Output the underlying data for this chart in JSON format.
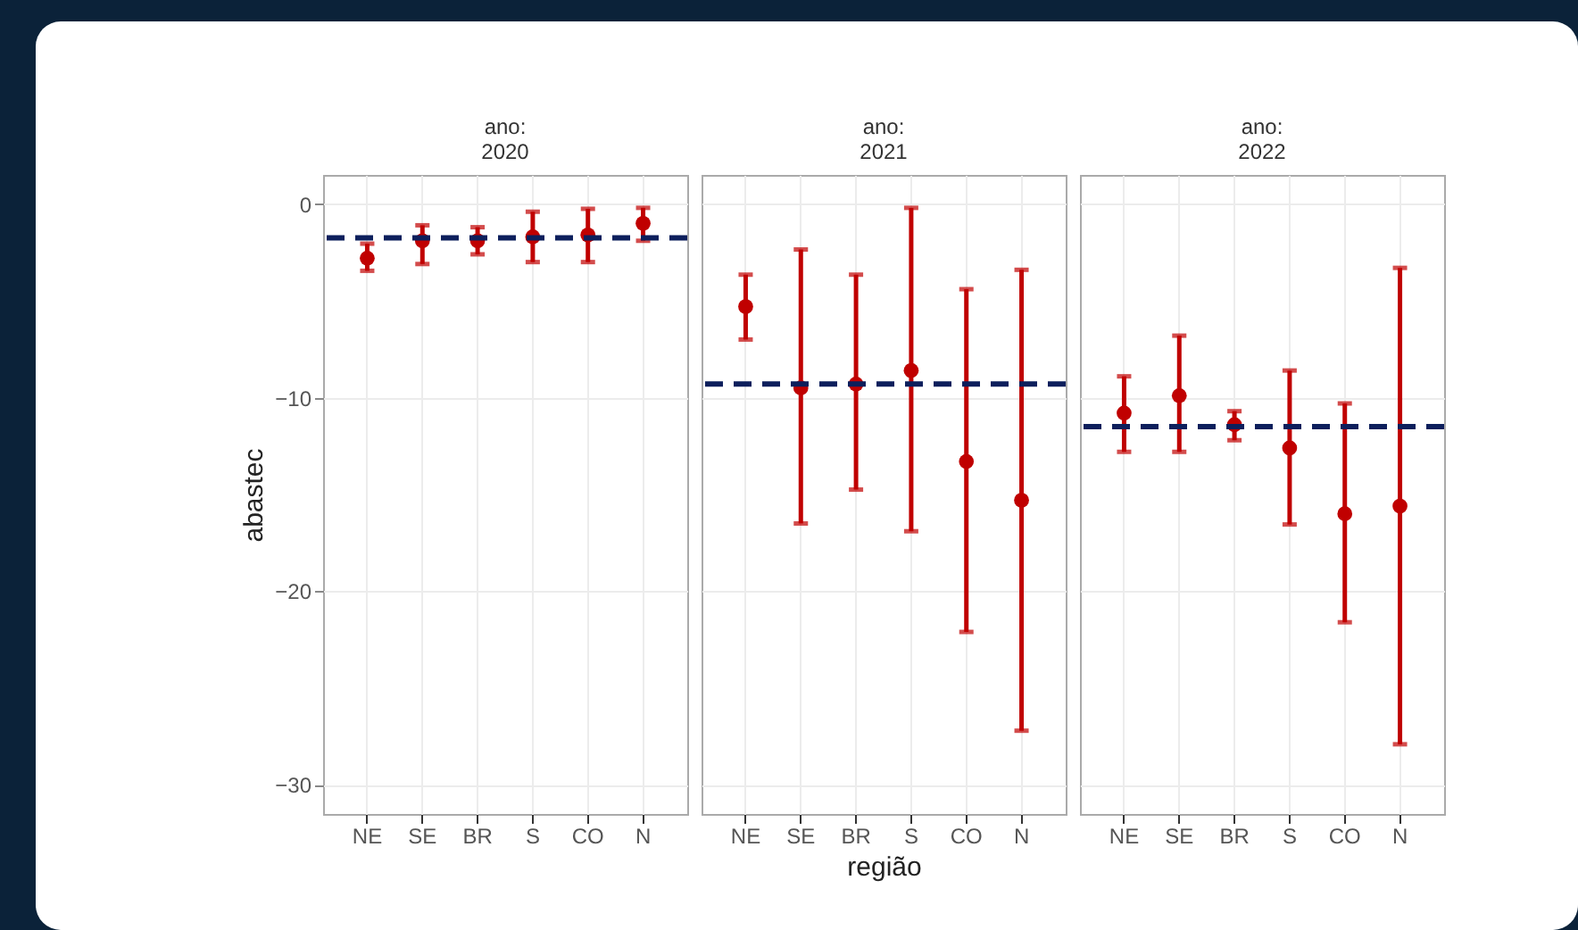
{
  "chart_data": [
    {
      "type": "scatter",
      "title": "ano:\n2020",
      "ylabel": "abastec",
      "categories": [
        "NE",
        "SE",
        "BR",
        "S",
        "CO",
        "N"
      ],
      "series": [
        {
          "color": "#c00000",
          "values": [
            -2.8,
            -1.9,
            -1.9,
            -1.7,
            -1.6,
            -1.0
          ],
          "errors": [
            [
              -3.45,
              -2.05
            ],
            [
              -3.1,
              -1.1
            ],
            [
              -2.6,
              -1.2
            ],
            [
              -3.0,
              -0.4
            ],
            [
              -3.0,
              -0.25
            ],
            [
              -1.9,
              -0.2
            ]
          ]
        }
      ],
      "ylim": [
        -31.5,
        1.5
      ],
      "yticks": [
        0,
        -10,
        -20,
        -30
      ],
      "grid": true,
      "marker": "circle",
      "ref_lines": [
        {
          "axis": "y",
          "value": -1.75,
          "color": "#0d1f5c",
          "line_style": "dashed"
        }
      ]
    },
    {
      "type": "scatter",
      "title": "ano:\n2021",
      "xlabel": "região",
      "categories": [
        "NE",
        "SE",
        "BR",
        "S",
        "CO",
        "N"
      ],
      "series": [
        {
          "color": "#c00000",
          "values": [
            -5.3,
            -9.5,
            -9.3,
            -8.6,
            -13.3,
            -15.3
          ],
          "errors": [
            [
              -7.0,
              -3.65
            ],
            [
              -16.5,
              -2.35
            ],
            [
              -14.75,
              -3.65
            ],
            [
              -16.9,
              -0.2
            ],
            [
              -22.1,
              -4.4
            ],
            [
              -27.2,
              -3.4
            ]
          ]
        }
      ],
      "ylim": [
        -31.5,
        1.5
      ],
      "yticks": [
        0,
        -10,
        -20,
        -30
      ],
      "grid": true,
      "marker": "circle",
      "tick_labels": "x",
      "ref_lines": [
        {
          "axis": "y",
          "value": -9.3,
          "color": "#0d1f5c",
          "line_style": "dashed"
        }
      ]
    },
    {
      "type": "scatter",
      "title": "ano:\n2022",
      "categories": [
        "NE",
        "SE",
        "BR",
        "S",
        "CO",
        "N"
      ],
      "series": [
        {
          "color": "#c00000",
          "values": [
            -10.8,
            -9.9,
            -11.4,
            -12.6,
            -16.0,
            -15.6
          ],
          "errors": [
            [
              -12.8,
              -8.9
            ],
            [
              -12.8,
              -6.8
            ],
            [
              -12.2,
              -10.7
            ],
            [
              -16.55,
              -8.6
            ],
            [
              -21.6,
              -10.3
            ],
            [
              -27.9,
              -3.3
            ]
          ]
        }
      ],
      "ylim": [
        -31.5,
        1.5
      ],
      "yticks": [
        0,
        -10,
        -20,
        -30
      ],
      "grid": true,
      "marker": "circle",
      "tick_labels": "x",
      "ref_lines": [
        {
          "axis": "y",
          "value": -11.5,
          "color": "#0d1f5c",
          "line_style": "dashed"
        }
      ]
    }
  ]
}
